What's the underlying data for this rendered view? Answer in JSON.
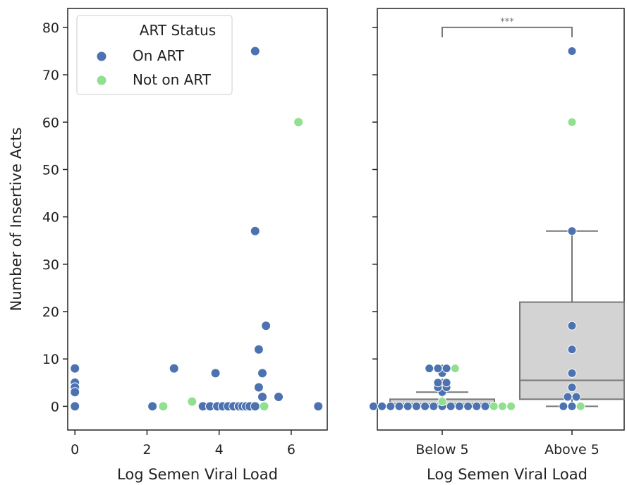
{
  "chart_data": [
    {
      "type": "scatter",
      "title": "",
      "xlabel": "Log Semen Viral Load",
      "ylabel": "Number of Insertive Acts",
      "xlim": [
        -0.2,
        7.0
      ],
      "ylim": [
        -5,
        84
      ],
      "xticks": [
        0,
        2,
        4,
        6
      ],
      "yticks": [
        0,
        10,
        20,
        30,
        40,
        50,
        60,
        70,
        80
      ],
      "legend": {
        "title": "ART Status",
        "placement": "top-left",
        "entries": [
          "On ART",
          "Not on ART"
        ]
      },
      "series": [
        {
          "name": "On ART",
          "color": "#4c72b0",
          "points": [
            [
              0,
              8
            ],
            [
              0,
              5
            ],
            [
              0,
              4
            ],
            [
              0,
              3
            ],
            [
              0,
              0
            ],
            [
              2.15,
              0
            ],
            [
              2.75,
              8
            ],
            [
              3.55,
              0
            ],
            [
              3.75,
              0
            ],
            [
              3.9,
              7
            ],
            [
              3.95,
              0
            ],
            [
              4.1,
              0
            ],
            [
              4.25,
              0
            ],
            [
              4.4,
              0
            ],
            [
              4.55,
              0
            ],
            [
              4.65,
              0
            ],
            [
              4.75,
              0
            ],
            [
              4.85,
              0
            ],
            [
              5.0,
              0
            ],
            [
              5.0,
              75
            ],
            [
              5.0,
              37
            ],
            [
              5.1,
              12
            ],
            [
              5.1,
              4
            ],
            [
              5.2,
              7
            ],
            [
              5.2,
              2
            ],
            [
              5.3,
              17
            ],
            [
              5.65,
              2
            ],
            [
              6.75,
              0
            ]
          ]
        },
        {
          "name": "Not on ART",
          "color": "#90e090",
          "points": [
            [
              2.45,
              0
            ],
            [
              3.25,
              1
            ],
            [
              5.25,
              0
            ],
            [
              6.2,
              60
            ]
          ]
        }
      ]
    },
    {
      "type": "box",
      "title": "",
      "xlabel": "Log Semen Viral Load",
      "ylabel": "",
      "categories": [
        "Below 5",
        "Above 5"
      ],
      "ylim": [
        -5,
        84
      ],
      "boxes": [
        {
          "category": "Below 5",
          "q1": 0,
          "median": 0.5,
          "q3": 1.5,
          "whisker_low": 0,
          "whisker_high": 3,
          "outliers": [
            4,
            5,
            7,
            8
          ]
        },
        {
          "category": "Above 5",
          "q1": 1.5,
          "median": 5.5,
          "q3": 22,
          "whisker_low": 0,
          "whisker_high": 37,
          "outliers": [
            60,
            75
          ]
        }
      ],
      "significance": {
        "label": "***",
        "between": [
          "Below 5",
          "Above 5"
        ],
        "y": 80
      },
      "series": [
        {
          "name": "On ART",
          "color": "#4c72b0",
          "points": [
            [
              "Below 5",
              0
            ],
            [
              "Below 5",
              0
            ],
            [
              "Below 5",
              0
            ],
            [
              "Below 5",
              0
            ],
            [
              "Below 5",
              0
            ],
            [
              "Below 5",
              0
            ],
            [
              "Below 5",
              0
            ],
            [
              "Below 5",
              0
            ],
            [
              "Below 5",
              0
            ],
            [
              "Below 5",
              0
            ],
            [
              "Below 5",
              0
            ],
            [
              "Below 5",
              0
            ],
            [
              "Below 5",
              0
            ],
            [
              "Below 5",
              0
            ],
            [
              "Below 5",
              3
            ],
            [
              "Below 5",
              4
            ],
            [
              "Below 5",
              4
            ],
            [
              "Below 5",
              5
            ],
            [
              "Below 5",
              5
            ],
            [
              "Below 5",
              7
            ],
            [
              "Below 5",
              8
            ],
            [
              "Below 5",
              8
            ],
            [
              "Below 5",
              8
            ],
            [
              "Above 5",
              75
            ],
            [
              "Above 5",
              37
            ],
            [
              "Above 5",
              17
            ],
            [
              "Above 5",
              12
            ],
            [
              "Above 5",
              7
            ],
            [
              "Above 5",
              4
            ],
            [
              "Above 5",
              2
            ],
            [
              "Above 5",
              2
            ],
            [
              "Above 5",
              0
            ],
            [
              "Above 5",
              0
            ]
          ]
        },
        {
          "name": "Not on ART",
          "color": "#90e090",
          "points": [
            [
              "Below 5",
              1
            ],
            [
              "Below 5",
              0
            ],
            [
              "Below 5",
              0
            ],
            [
              "Below 5",
              0
            ],
            [
              "Below 5",
              8
            ],
            [
              "Above 5",
              60
            ],
            [
              "Above 5",
              0
            ]
          ]
        }
      ]
    }
  ]
}
